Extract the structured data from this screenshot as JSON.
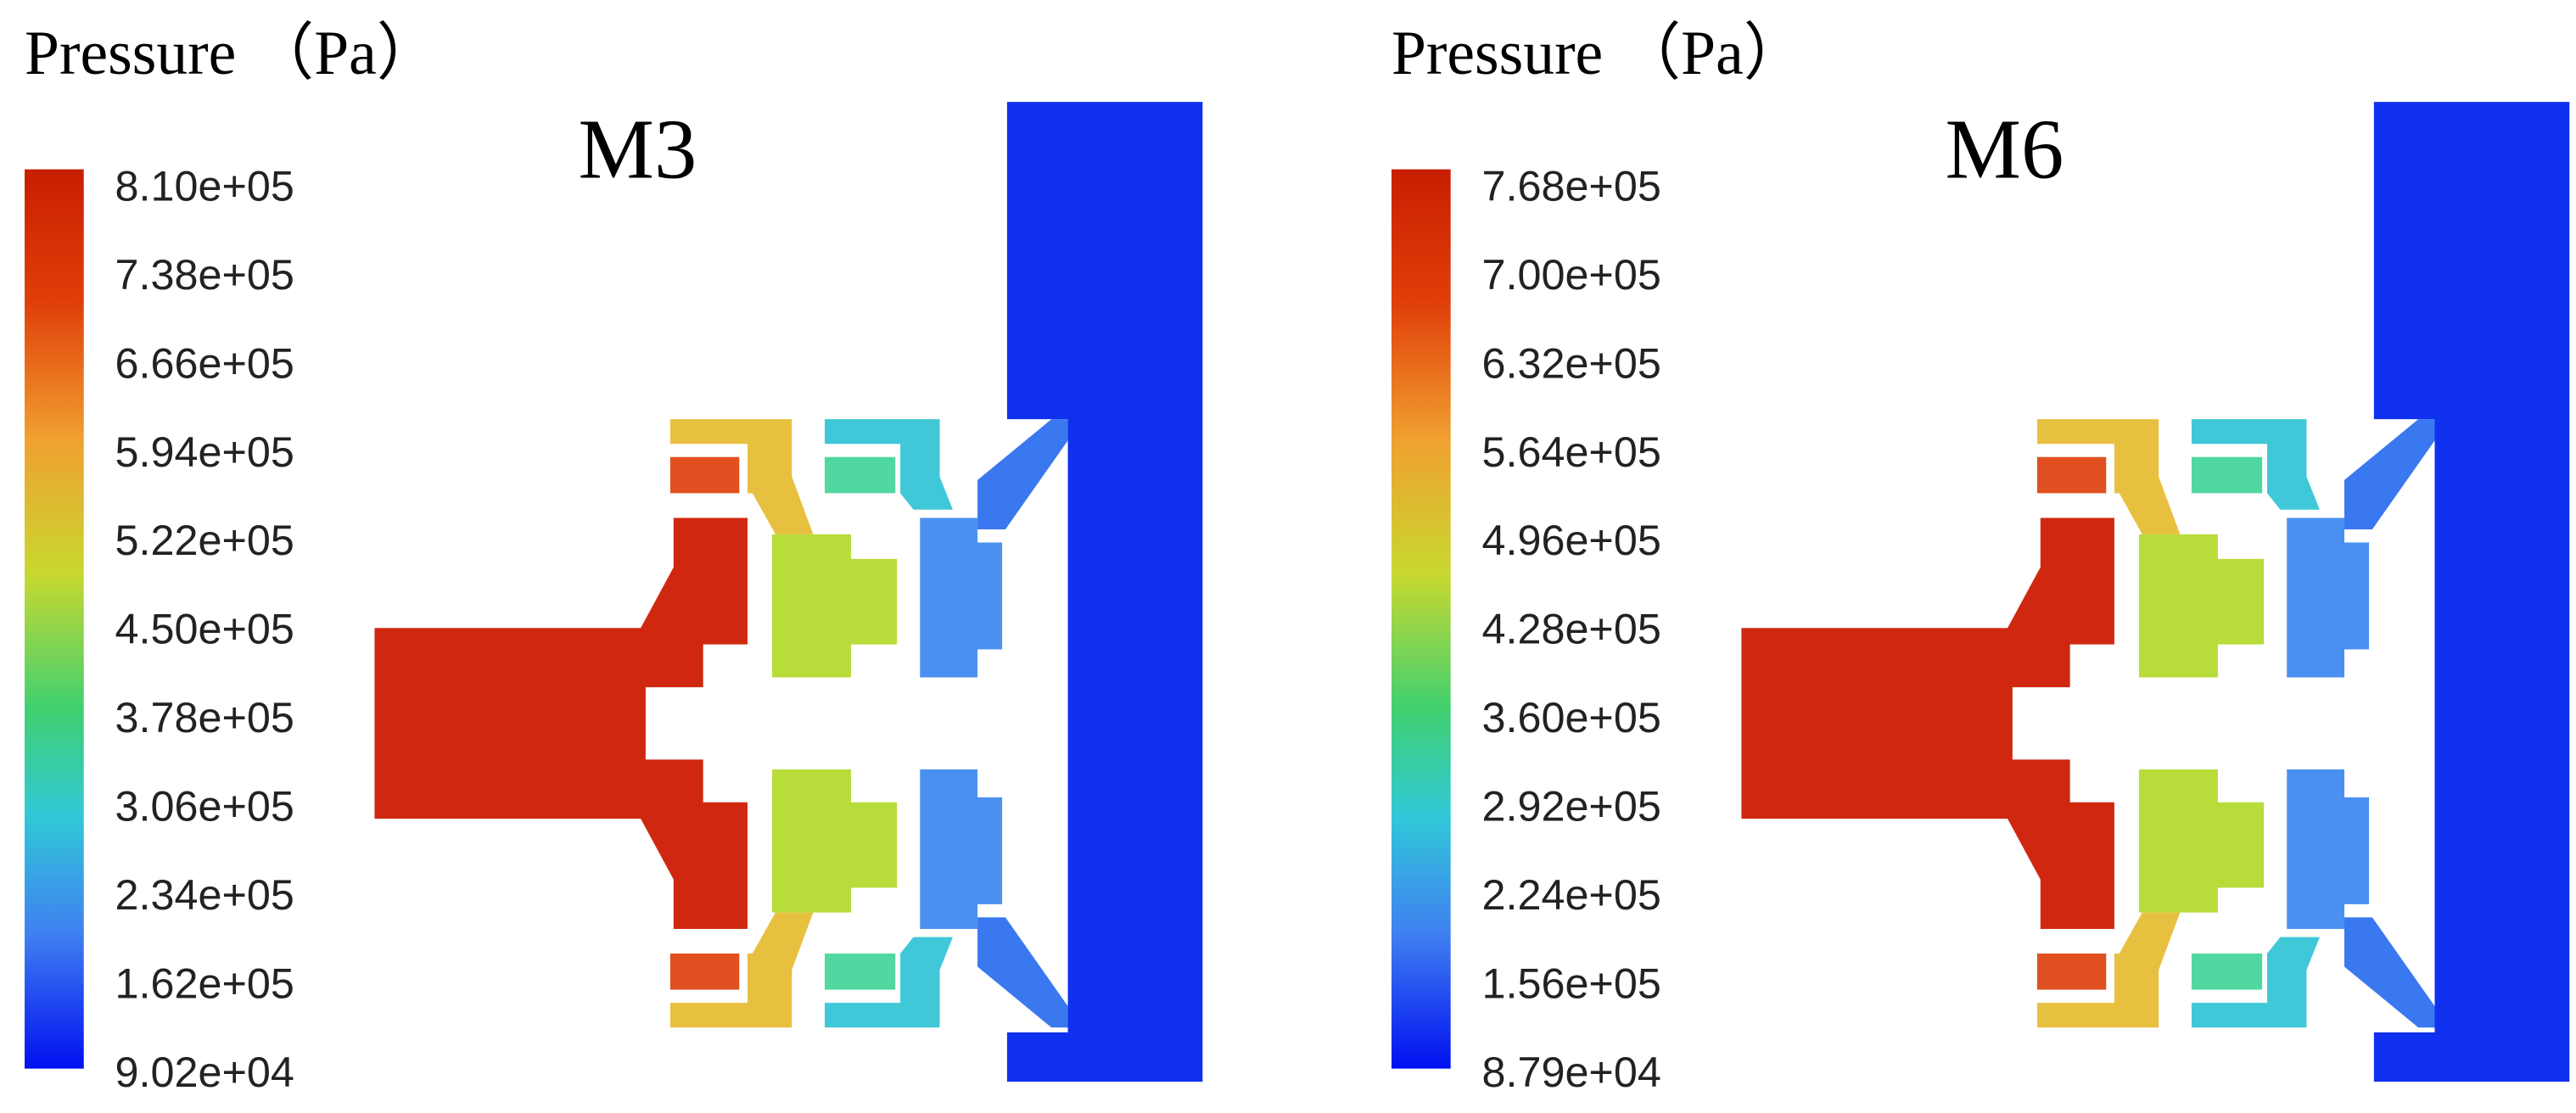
{
  "panels": [
    {
      "title": "M3",
      "colorbar_label": "Pressure （Pa）",
      "ticks": [
        "8.10e+05",
        "7.38e+05",
        "6.66e+05",
        "5.94e+05",
        "5.22e+05",
        "4.50e+05",
        "3.78e+05",
        "3.06e+05",
        "2.34e+05",
        "1.62e+05",
        "9.02e+04"
      ]
    },
    {
      "title": "M6",
      "colorbar_label": "Pressure （Pa）",
      "ticks": [
        "7.68e+05",
        "7.00e+05",
        "6.32e+05",
        "5.64e+05",
        "4.96e+05",
        "4.28e+05",
        "3.60e+05",
        "2.92e+05",
        "2.24e+05",
        "1.56e+05",
        "8.79e+04"
      ]
    }
  ]
}
